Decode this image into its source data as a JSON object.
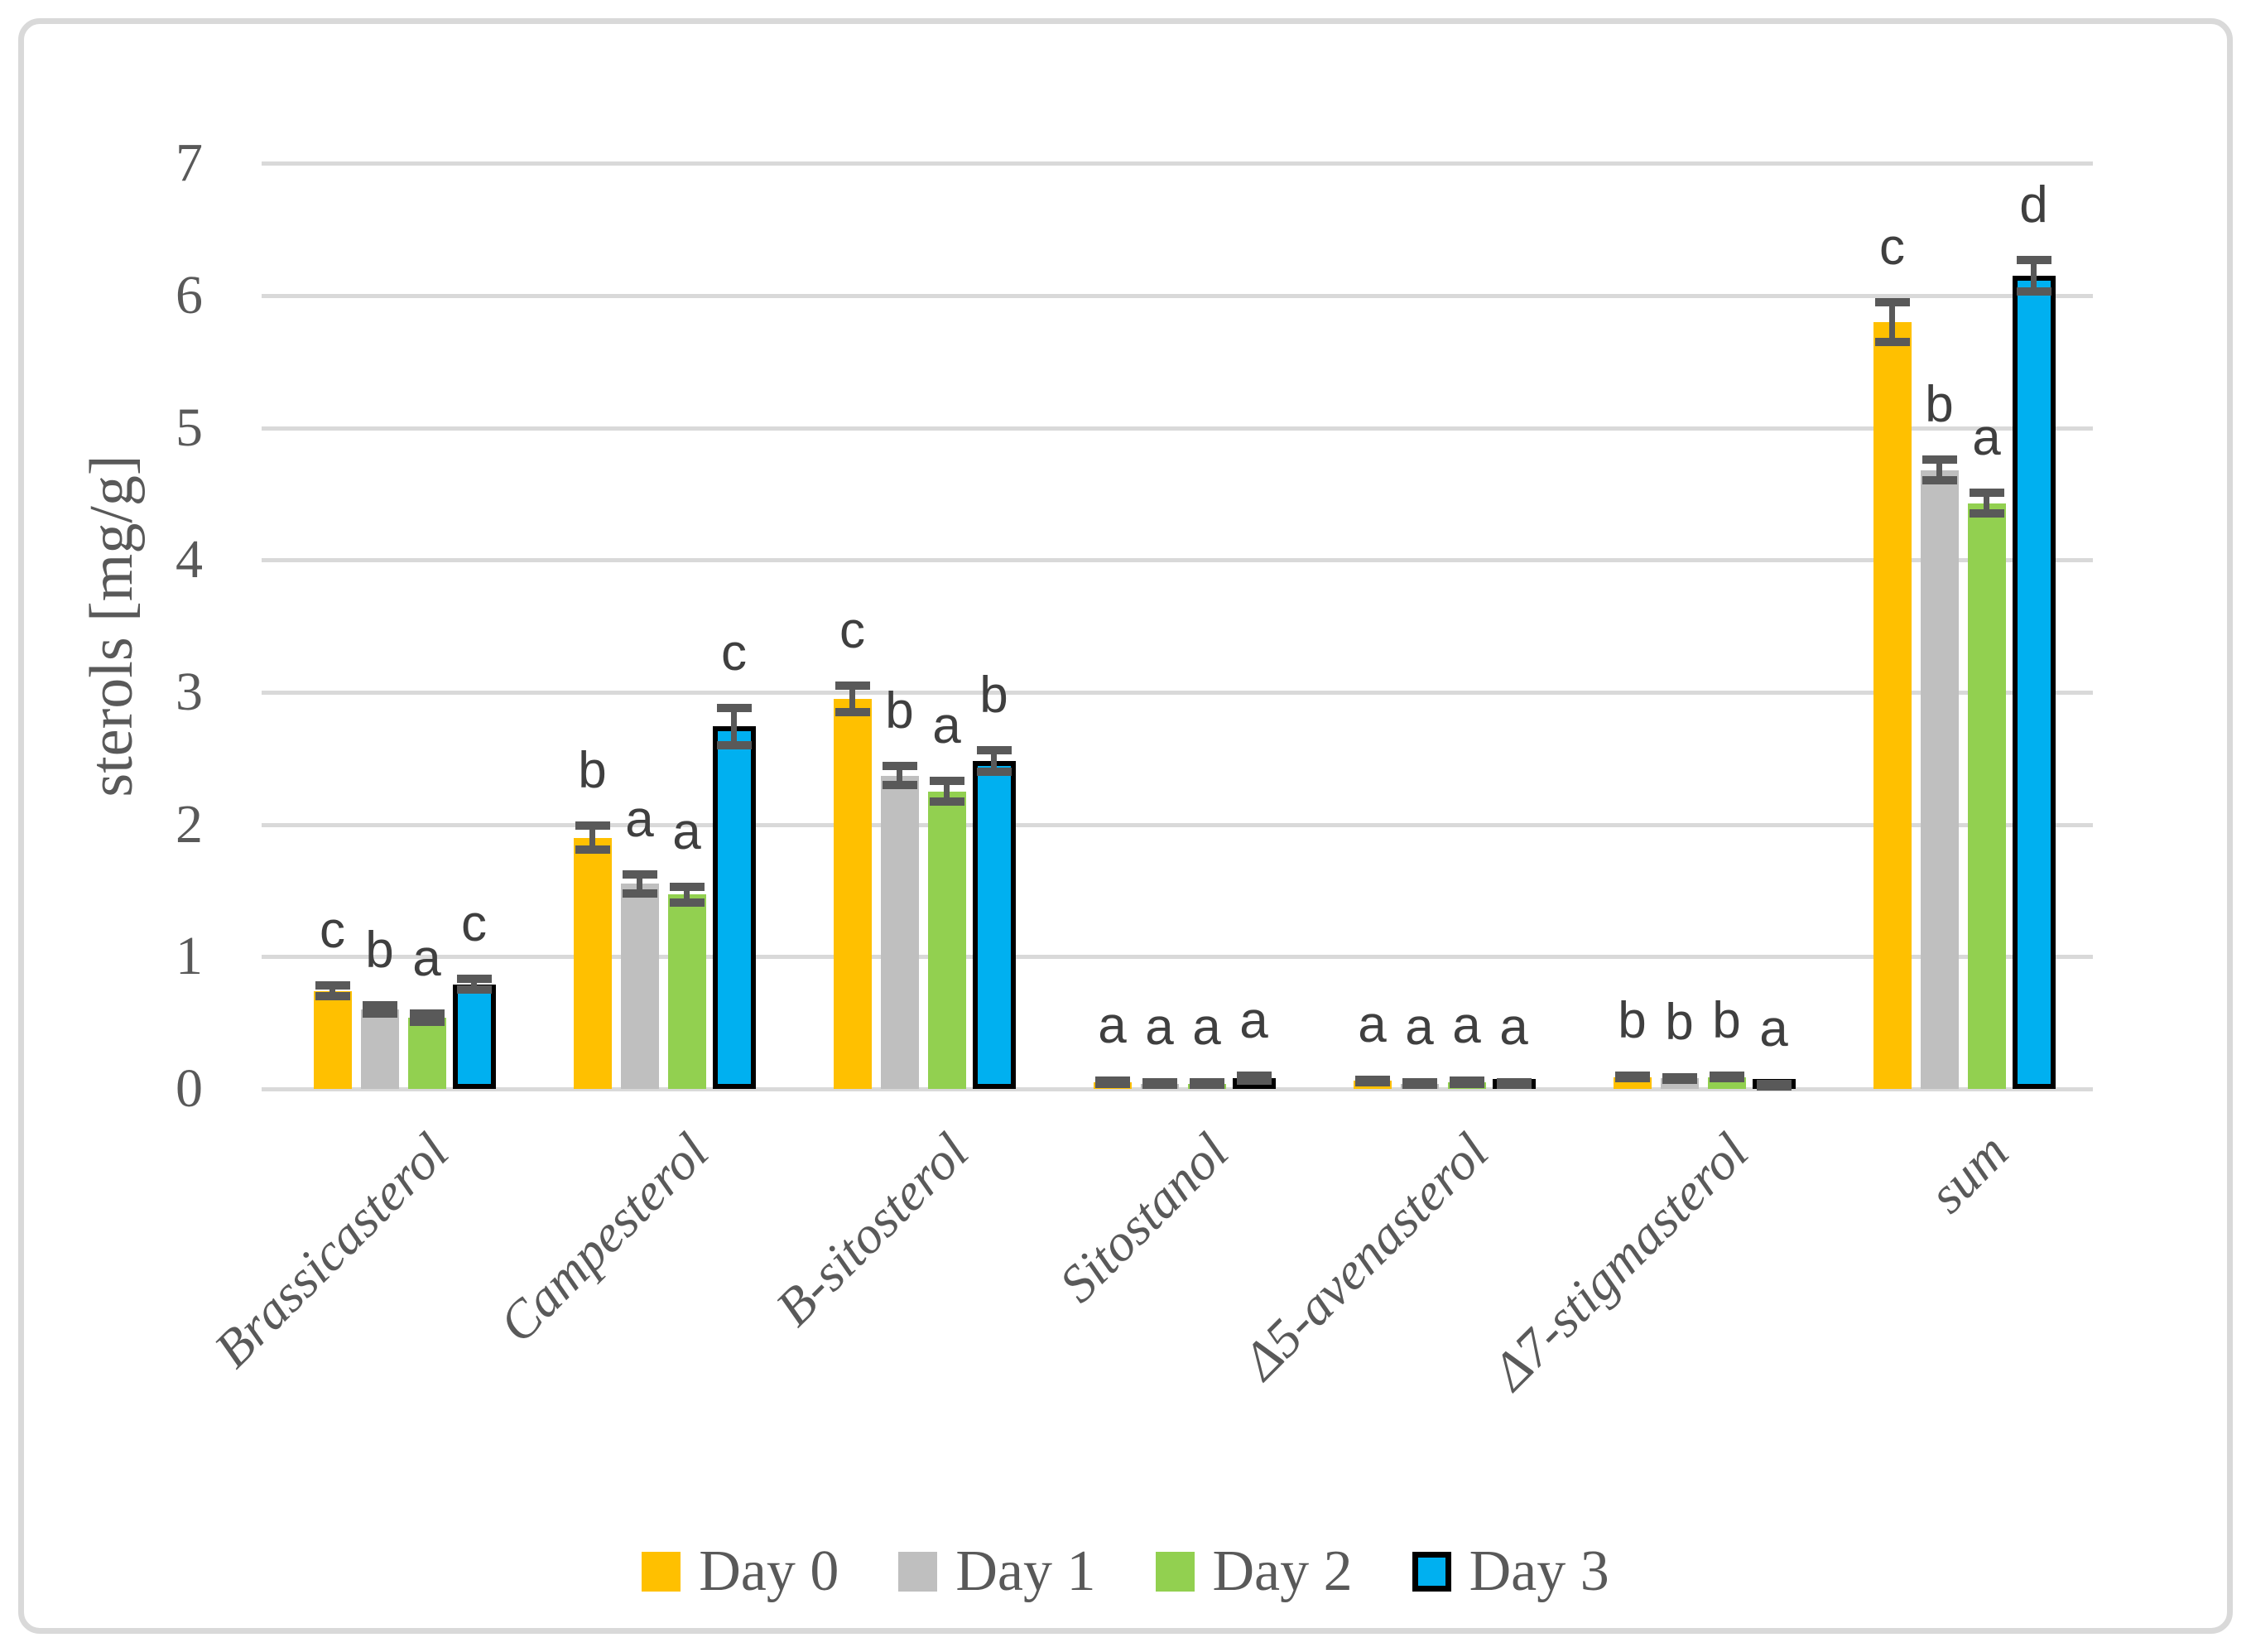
{
  "figure": {
    "background": "#FFFFFF",
    "frame_color": "#D9D9D9",
    "gridline_color": "#D9D9D9",
    "error_bar_color": "#595959",
    "text_color": "#595959",
    "letter_color": "#3f3f3f"
  },
  "chart_data": {
    "type": "bar",
    "title": "",
    "xlabel": "",
    "ylabel": "sterols [mg/g]",
    "ylim": [
      0,
      7
    ],
    "y_ticks": [
      0,
      1,
      2,
      3,
      4,
      5,
      6,
      7
    ],
    "grid": true,
    "legend_position": "bottom",
    "categories": [
      "Brassicasterol",
      "Campesterol",
      "B-sitosterol",
      "Sitostanol",
      "Δ5-avenasterol",
      "Δ7-stigmasterol",
      "sum"
    ],
    "series": [
      {
        "name": "Day 0",
        "color": "#FFC000",
        "border": null,
        "values": [
          0.74,
          1.9,
          2.95,
          0.05,
          0.06,
          0.09,
          5.8
        ],
        "errors": [
          0.04,
          0.09,
          0.1,
          0.01,
          0.01,
          0.01,
          0.15
        ],
        "letters": [
          "c",
          "b",
          "c",
          "a",
          "a",
          "b",
          "c"
        ]
      },
      {
        "name": "Day 1",
        "color": "#BFBFBF",
        "border": null,
        "values": [
          0.6,
          1.55,
          2.37,
          0.04,
          0.04,
          0.08,
          4.68
        ],
        "errors": [
          0.03,
          0.07,
          0.07,
          0.01,
          0.01,
          0.01,
          0.08
        ],
        "letters": [
          "b",
          "a",
          "b",
          "a",
          "a",
          "b",
          "b"
        ]
      },
      {
        "name": "Day 2",
        "color": "#92D050",
        "border": null,
        "values": [
          0.54,
          1.47,
          2.25,
          0.04,
          0.05,
          0.09,
          4.43
        ],
        "errors": [
          0.03,
          0.06,
          0.08,
          0.01,
          0.01,
          0.01,
          0.08
        ],
        "letters": [
          "a",
          "a",
          "a",
          "a",
          "a",
          "b",
          "a"
        ]
      },
      {
        "name": "Day 3",
        "color": "#00B0F0",
        "border": "#000000",
        "values": [
          0.79,
          2.74,
          2.48,
          0.08,
          0.04,
          0.03,
          6.15
        ],
        "errors": [
          0.04,
          0.14,
          0.08,
          0.02,
          0.01,
          0.01,
          0.12
        ],
        "letters": [
          "c",
          "c",
          "b",
          "a",
          "a",
          "a",
          "d"
        ]
      }
    ]
  }
}
